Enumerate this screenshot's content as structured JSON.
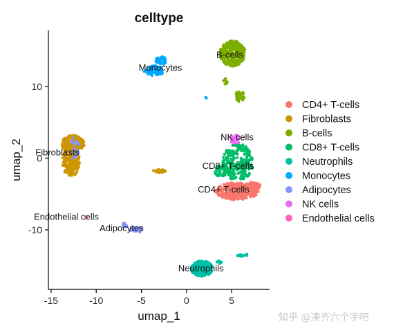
{
  "chart_data": {
    "type": "scatter",
    "title": "celltype",
    "xlabel": "umap_1",
    "ylabel": "umap_2",
    "xlim": [
      -15.3,
      9.2
    ],
    "ylim": [
      -18.3,
      17.8
    ],
    "xticks": [
      -15,
      -10,
      -5,
      0,
      5
    ],
    "yticks": [
      -10,
      0,
      10
    ],
    "legend_position": "right",
    "series": [
      {
        "name": "CD4+ T-cells",
        "color": "#F8766D",
        "label": "CD4+ T-cells",
        "label_at": [
          4.1,
          -4.8
        ],
        "blobs": [
          {
            "cx": 5.6,
            "cy": -4.6,
            "rx": 2.4,
            "ry": 1.2,
            "n": 320
          },
          {
            "cx": 7.3,
            "cy": -3.9,
            "rx": 0.9,
            "ry": 0.6,
            "n": 60
          }
        ]
      },
      {
        "name": "Fibroblasts",
        "color": "#CD9600",
        "label": "Fibroblasts",
        "label_at": [
          -14.3,
          0.4
        ],
        "blobs": [
          {
            "cx": -12.6,
            "cy": 2.0,
            "rx": 1.3,
            "ry": 1.2,
            "n": 220
          },
          {
            "cx": -12.8,
            "cy": -0.5,
            "rx": 1.0,
            "ry": 2.0,
            "n": 200
          },
          {
            "cx": -3.0,
            "cy": -1.8,
            "rx": 0.7,
            "ry": 0.22,
            "n": 30
          }
        ]
      },
      {
        "name": "B-cells",
        "color": "#7CAE00",
        "label": "B-cells",
        "label_at": [
          4.8,
          14.0
        ],
        "blobs": [
          {
            "cx": 5.1,
            "cy": 14.6,
            "rx": 1.4,
            "ry": 1.8,
            "n": 300
          },
          {
            "cx": 5.9,
            "cy": 8.6,
            "rx": 0.5,
            "ry": 0.8,
            "n": 40
          },
          {
            "cx": 4.3,
            "cy": 10.6,
            "rx": 0.25,
            "ry": 0.5,
            "n": 8
          }
        ]
      },
      {
        "name": "CD8+ T-cells",
        "color": "#00BE67",
        "label": "CD8+ T-cells",
        "label_at": [
          4.6,
          -1.5
        ],
        "blobs": [
          {
            "cx": 5.7,
            "cy": -0.6,
            "rx": 1.7,
            "ry": 2.6,
            "n": 260
          },
          {
            "cx": 3.8,
            "cy": -1.8,
            "rx": 0.7,
            "ry": 0.8,
            "n": 40
          }
        ]
      },
      {
        "name": "Neutrophils",
        "color": "#00BFA5",
        "label": "Neutrophils",
        "label_at": [
          1.6,
          -15.8
        ],
        "blobs": [
          {
            "cx": 1.7,
            "cy": -15.4,
            "rx": 1.2,
            "ry": 1.1,
            "n": 220
          },
          {
            "cx": 6.2,
            "cy": -13.5,
            "rx": 0.6,
            "ry": 0.2,
            "n": 12
          },
          {
            "cx": 3.6,
            "cy": -14.5,
            "rx": 0.3,
            "ry": 0.2,
            "n": 6
          }
        ]
      },
      {
        "name": "Monocytes",
        "color": "#00A9FF",
        "label": "Monocytes",
        "label_at": [
          -2.9,
          12.2
        ],
        "blobs": [
          {
            "cx": -3.6,
            "cy": 12.2,
            "rx": 1.1,
            "ry": 0.7,
            "n": 80
          },
          {
            "cx": -2.8,
            "cy": 13.6,
            "rx": 0.6,
            "ry": 0.6,
            "n": 40
          },
          {
            "cx": 2.2,
            "cy": 8.5,
            "rx": 0.12,
            "ry": 0.12,
            "n": 2
          }
        ]
      },
      {
        "name": "Adipocytes",
        "color": "#8494FF",
        "label": "Adipocytes",
        "label_at": [
          -7.2,
          -10.2
        ],
        "blobs": [
          {
            "cx": -5.6,
            "cy": -10.0,
            "rx": 0.8,
            "ry": 0.4,
            "n": 28
          },
          {
            "cx": -6.9,
            "cy": -9.4,
            "rx": 0.3,
            "ry": 0.4,
            "n": 10
          },
          {
            "cx": -12.4,
            "cy": 1.4,
            "rx": 0.6,
            "ry": 1.6,
            "n": 22
          }
        ]
      },
      {
        "name": "NK cells",
        "color": "#E76BF3",
        "label": "NK cells",
        "label_at": [
          5.6,
          2.5
        ],
        "blobs": [
          {
            "cx": 5.4,
            "cy": 2.6,
            "rx": 0.55,
            "ry": 0.65,
            "n": 40
          }
        ]
      },
      {
        "name": "Endothelial cells",
        "color": "#FF62BC",
        "label": "Endothelial cells",
        "label_at": [
          -13.3,
          -8.6
        ],
        "blobs": [
          {
            "cx": -11.1,
            "cy": -8.3,
            "rx": 0.12,
            "ry": 0.1,
            "n": 3
          }
        ]
      }
    ]
  },
  "watermark": "知乎 @凑齐六个字吧"
}
